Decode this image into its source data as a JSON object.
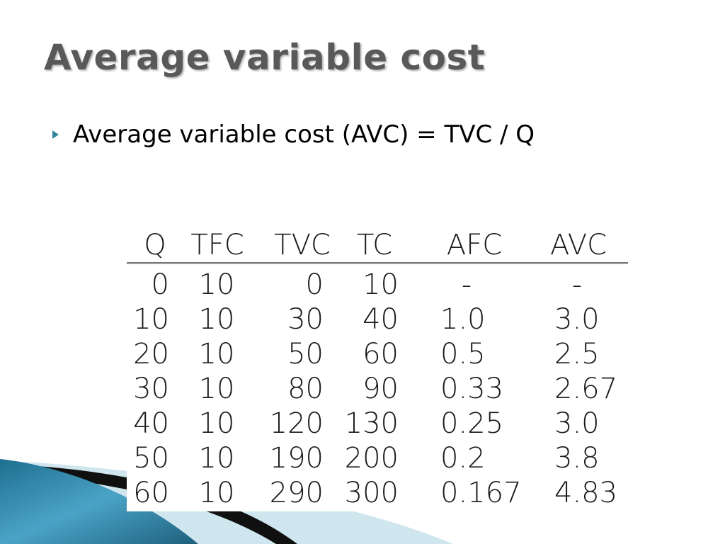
{
  "slide": {
    "title": "Average variable cost",
    "bullet": "Average variable cost (AVC) = TVC / Q",
    "colors": {
      "title": "#595959",
      "bullet_marker": "#31869b",
      "wave_teal": "#3a8fb0",
      "wave_dark": "#111111",
      "wave_light": "#c9e4ef"
    }
  },
  "table": {
    "headers": [
      "Q",
      "TFC",
      "TVC",
      "TC",
      "AFC",
      "AVC"
    ],
    "rows": [
      [
        "0",
        "10",
        "0",
        "10",
        "-",
        "-"
      ],
      [
        "10",
        "10",
        "30",
        "40",
        "1.0",
        "3.0"
      ],
      [
        "20",
        "10",
        "50",
        "60",
        "0.5",
        "2.5"
      ],
      [
        "30",
        "10",
        "80",
        "90",
        "0.33",
        "2.67"
      ],
      [
        "40",
        "10",
        "120",
        "130",
        "0.25",
        "3.0"
      ],
      [
        "50",
        "10",
        "190",
        "200",
        "0.2",
        "3.8"
      ],
      [
        "60",
        "10",
        "290",
        "300",
        "0.167",
        "4.83"
      ]
    ]
  }
}
